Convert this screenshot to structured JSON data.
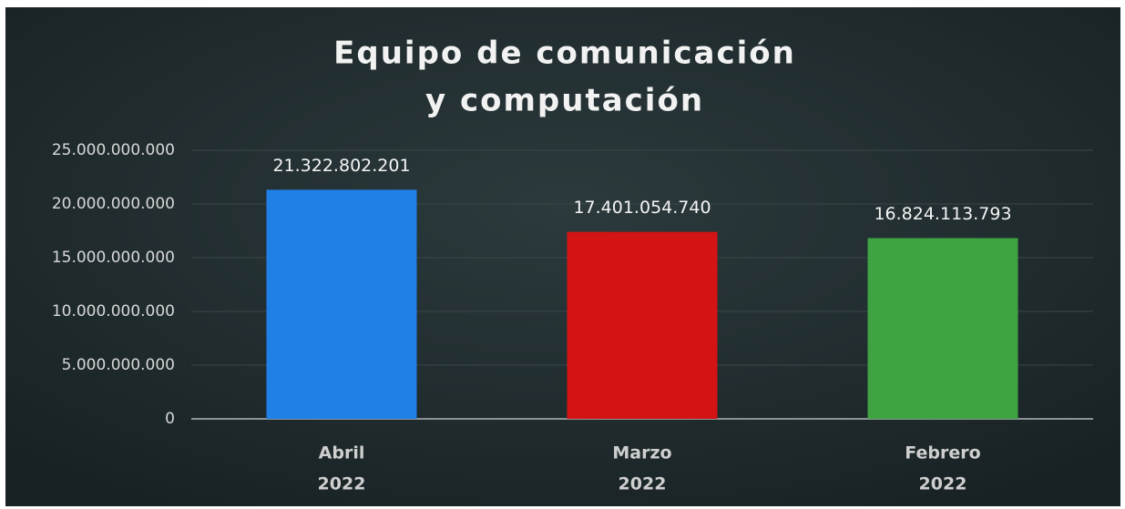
{
  "chart_data": {
    "type": "bar",
    "title": [
      "Equipo de comunicación",
      "y computación"
    ],
    "categories": [
      [
        "Abril",
        "2022"
      ],
      [
        "Marzo",
        "2022"
      ],
      [
        "Febrero",
        "2022"
      ]
    ],
    "values": [
      21322802201,
      17401054740,
      16824113793
    ],
    "value_labels": [
      "21.322.802.201",
      "17.401.054.740",
      "16.824.113.793"
    ],
    "colors": [
      "#1f80e6",
      "#d41414",
      "#3fa343"
    ],
    "ylim": [
      0,
      25000000000
    ],
    "yticks": [
      0,
      {
        "value": 5000000000,
        "label": "5.000.000.000"
      },
      {
        "value": 10000000000,
        "label": "10.000.000.000"
      },
      {
        "value": 15000000000,
        "label": "15.000.000.000"
      },
      {
        "value": 20000000000,
        "label": "20.000.000.000"
      },
      {
        "value": 25000000000,
        "label": "25.000.000.000"
      }
    ],
    "grid": true
  }
}
